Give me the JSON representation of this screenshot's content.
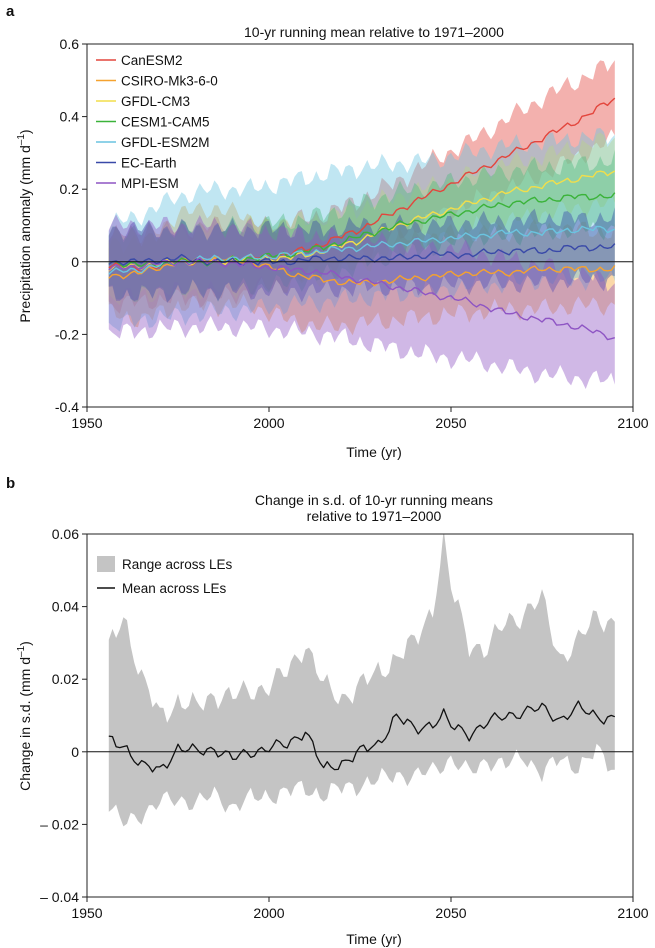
{
  "chart_data": [
    {
      "panel": "a",
      "type": "line",
      "title": "10-yr running mean relative to 1971–2000",
      "xlabel": "Time (yr)",
      "ylabel": "Precipitation anomaly (mm d−1)",
      "ylabel_main": "Precipitation anomaly (mm d",
      "ylabel_sup": "–1",
      "ylabel_close": ")",
      "xlim": [
        1950,
        2100
      ],
      "ylim": [
        -0.4,
        0.6
      ],
      "xticks": [
        1950,
        2000,
        2050,
        2100
      ],
      "xtick_labels": [
        "1950",
        "2000",
        "2050",
        "2100"
      ],
      "yticks": [
        -0.4,
        -0.2,
        0,
        0.2,
        0.4,
        0.6
      ],
      "ytick_labels": [
        "-0.4",
        "-0.2",
        "0",
        "0.2",
        "0.4",
        "0.6"
      ],
      "legend_position": "top-left",
      "zero_line": true,
      "series": [
        {
          "name": "CanESM2",
          "color": "#e3463d",
          "x": [
            1956,
            1965,
            1975,
            1985,
            1995,
            2005,
            2015,
            2025,
            2035,
            2045,
            2055,
            2065,
            2075,
            2085,
            2095
          ],
          "mean": [
            -0.01,
            -0.02,
            0.0,
            0.0,
            0.01,
            0.02,
            0.05,
            0.09,
            0.14,
            0.19,
            0.24,
            0.29,
            0.34,
            0.39,
            0.45
          ],
          "lower": [
            -0.12,
            -0.11,
            -0.1,
            -0.1,
            -0.08,
            -0.06,
            -0.02,
            0.02,
            0.07,
            0.12,
            0.16,
            0.2,
            0.24,
            0.29,
            0.34
          ],
          "upper": [
            0.08,
            0.07,
            0.09,
            0.1,
            0.1,
            0.11,
            0.13,
            0.17,
            0.22,
            0.28,
            0.33,
            0.39,
            0.45,
            0.5,
            0.55
          ]
        },
        {
          "name": "CSIRO-Mk3-6-0",
          "color": "#f5a22f",
          "x": [
            1956,
            1965,
            1975,
            1985,
            1995,
            2005,
            2015,
            2025,
            2035,
            2045,
            2055,
            2065,
            2075,
            2085,
            2095
          ],
          "mean": [
            -0.04,
            -0.03,
            0.0,
            0.01,
            0.0,
            -0.03,
            -0.05,
            -0.06,
            -0.05,
            -0.04,
            -0.03,
            -0.03,
            -0.02,
            -0.02,
            -0.02
          ],
          "lower": [
            -0.14,
            -0.16,
            -0.12,
            -0.12,
            -0.12,
            -0.16,
            -0.18,
            -0.17,
            -0.16,
            -0.15,
            -0.14,
            -0.13,
            -0.13,
            -0.12,
            -0.12
          ],
          "upper": [
            0.05,
            0.06,
            0.13,
            0.15,
            0.12,
            0.08,
            0.05,
            0.05,
            0.06,
            0.07,
            0.08,
            0.08,
            0.09,
            0.09,
            0.08
          ]
        },
        {
          "name": "GFDL-CM3",
          "color": "#f2de4a",
          "x": [
            1956,
            1965,
            1975,
            1985,
            1995,
            2005,
            2015,
            2025,
            2035,
            2045,
            2055,
            2065,
            2075,
            2085,
            2095
          ],
          "mean": [
            -0.02,
            -0.01,
            0.0,
            0.0,
            0.01,
            0.01,
            0.03,
            0.06,
            0.1,
            0.13,
            0.16,
            0.19,
            0.21,
            0.23,
            0.25
          ],
          "lower": [
            -0.1,
            -0.09,
            -0.08,
            -0.08,
            -0.07,
            -0.06,
            -0.04,
            -0.01,
            0.03,
            0.06,
            0.09,
            0.11,
            0.13,
            0.15,
            0.16
          ],
          "upper": [
            0.07,
            0.07,
            0.08,
            0.09,
            0.1,
            0.11,
            0.12,
            0.15,
            0.18,
            0.21,
            0.24,
            0.27,
            0.29,
            0.32,
            0.34
          ]
        },
        {
          "name": "CESM1-CAM5",
          "color": "#3bb33a",
          "x": [
            1956,
            1965,
            1975,
            1985,
            1995,
            2005,
            2015,
            2025,
            2035,
            2045,
            2055,
            2065,
            2075,
            2085,
            2095
          ],
          "mean": [
            0.0,
            -0.01,
            0.0,
            0.0,
            0.01,
            0.02,
            0.04,
            0.07,
            0.1,
            0.12,
            0.14,
            0.16,
            0.17,
            0.18,
            0.18
          ],
          "lower": [
            -0.09,
            -0.09,
            -0.08,
            -0.08,
            -0.07,
            -0.06,
            -0.04,
            -0.01,
            0.02,
            0.04,
            0.06,
            0.07,
            0.08,
            0.09,
            0.09
          ],
          "upper": [
            0.09,
            0.08,
            0.09,
            0.09,
            0.1,
            0.11,
            0.13,
            0.16,
            0.19,
            0.21,
            0.23,
            0.25,
            0.26,
            0.27,
            0.28
          ]
        },
        {
          "name": "GFDL-ESM2M",
          "color": "#6ac4e0",
          "x": [
            1956,
            1965,
            1975,
            1985,
            1995,
            2005,
            2015,
            2025,
            2035,
            2045,
            2055,
            2065,
            2075,
            2085,
            2095
          ],
          "mean": [
            -0.03,
            -0.02,
            0.0,
            0.01,
            0.01,
            0.02,
            0.03,
            0.04,
            0.05,
            0.06,
            0.07,
            0.08,
            0.08,
            0.09,
            0.09
          ],
          "lower": [
            -0.18,
            -0.16,
            -0.15,
            -0.14,
            -0.13,
            -0.12,
            -0.11,
            -0.1,
            -0.09,
            -0.08,
            -0.07,
            -0.06,
            -0.05,
            -0.05,
            -0.05
          ],
          "upper": [
            0.1,
            0.13,
            0.18,
            0.2,
            0.2,
            0.22,
            0.24,
            0.26,
            0.27,
            0.28,
            0.3,
            0.32,
            0.33,
            0.34,
            0.35
          ]
        },
        {
          "name": "EC-Earth",
          "color": "#3949a8",
          "x": [
            1956,
            1965,
            1975,
            1985,
            1995,
            2005,
            2015,
            2025,
            2035,
            2045,
            2055,
            2065,
            2075,
            2085,
            2095
          ],
          "mean": [
            0.0,
            0.0,
            0.01,
            0.0,
            0.0,
            0.0,
            0.01,
            0.01,
            0.01,
            0.02,
            0.02,
            0.03,
            0.03,
            0.04,
            0.04
          ],
          "lower": [
            -0.09,
            -0.09,
            -0.08,
            -0.08,
            -0.08,
            -0.08,
            -0.08,
            -0.07,
            -0.07,
            -0.07,
            -0.06,
            -0.06,
            -0.06,
            -0.05,
            -0.05
          ],
          "upper": [
            0.09,
            0.09,
            0.09,
            0.09,
            0.09,
            0.09,
            0.09,
            0.1,
            0.1,
            0.1,
            0.11,
            0.11,
            0.12,
            0.12,
            0.12
          ]
        },
        {
          "name": "MPI-ESM",
          "color": "#8e55c4",
          "x": [
            1956,
            1965,
            1975,
            1985,
            1995,
            2005,
            2015,
            2025,
            2035,
            2045,
            2055,
            2065,
            2075,
            2085,
            2095
          ],
          "mean": [
            -0.02,
            -0.01,
            0.0,
            0.0,
            -0.01,
            -0.02,
            -0.03,
            -0.05,
            -0.07,
            -0.09,
            -0.11,
            -0.14,
            -0.16,
            -0.18,
            -0.21
          ],
          "lower": [
            -0.2,
            -0.19,
            -0.18,
            -0.18,
            -0.18,
            -0.19,
            -0.2,
            -0.22,
            -0.24,
            -0.26,
            -0.27,
            -0.29,
            -0.31,
            -0.32,
            -0.33
          ],
          "upper": [
            0.1,
            0.1,
            0.1,
            0.1,
            0.09,
            0.08,
            0.07,
            0.06,
            0.05,
            0.04,
            0.03,
            0.01,
            -0.01,
            -0.03,
            -0.06
          ]
        }
      ]
    },
    {
      "panel": "b",
      "type": "area",
      "title_line1": "Change in s.d. of 10-yr running means",
      "title_line2": "relative to 1971–2000",
      "xlabel": "Time (yr)",
      "ylabel_main": "Change in s.d. (mm d",
      "ylabel_sup": "–1",
      "ylabel_close": ")",
      "xlim": [
        1950,
        2100
      ],
      "ylim": [
        -0.04,
        0.06
      ],
      "xticks": [
        1950,
        2000,
        2050,
        2100
      ],
      "xtick_labels": [
        "1950",
        "2000",
        "2050",
        "2100"
      ],
      "yticks": [
        -0.04,
        -0.02,
        0,
        0.02,
        0.04,
        0.06
      ],
      "ytick_labels": [
        "– 0.04",
        "– 0.02",
        "0",
        "0.02",
        "0.04",
        "0.06"
      ],
      "legend_position": "top-left",
      "zero_line": true,
      "series": [
        {
          "name": "Range across LEs",
          "kind": "range",
          "color": "#c4c4c4",
          "x": [
            1956,
            1960,
            1965,
            1970,
            1975,
            1980,
            1985,
            1990,
            1995,
            2000,
            2005,
            2010,
            2015,
            2020,
            2025,
            2030,
            2035,
            2040,
            2045,
            2048,
            2050,
            2055,
            2060,
            2065,
            2070,
            2075,
            2080,
            2085,
            2090,
            2095
          ],
          "lower": [
            -0.015,
            -0.02,
            -0.017,
            -0.014,
            -0.013,
            -0.014,
            -0.012,
            -0.015,
            -0.013,
            -0.012,
            -0.011,
            -0.01,
            -0.012,
            -0.01,
            -0.009,
            -0.008,
            -0.006,
            -0.007,
            -0.005,
            -0.003,
            -0.002,
            -0.006,
            -0.002,
            -0.004,
            -0.001,
            -0.006,
            -0.002,
            -0.004,
            0.0,
            -0.005
          ],
          "upper": [
            0.028,
            0.038,
            0.02,
            0.01,
            0.014,
            0.012,
            0.016,
            0.015,
            0.017,
            0.018,
            0.022,
            0.03,
            0.018,
            0.015,
            0.018,
            0.022,
            0.026,
            0.03,
            0.04,
            0.058,
            0.045,
            0.03,
            0.028,
            0.036,
            0.038,
            0.042,
            0.026,
            0.03,
            0.038,
            0.035
          ]
        },
        {
          "name": "Mean across LEs",
          "kind": "line",
          "color": "#111111",
          "x": [
            1956,
            1960,
            1965,
            1970,
            1975,
            1980,
            1985,
            1990,
            1995,
            2000,
            2005,
            2010,
            2015,
            2020,
            2025,
            2030,
            2035,
            2040,
            2045,
            2048,
            2050,
            2055,
            2060,
            2065,
            2070,
            2075,
            2080,
            2085,
            2090,
            2095
          ],
          "values": [
            0.003,
            0.002,
            -0.004,
            -0.005,
            0.001,
            0.0,
            0.001,
            -0.002,
            0.0,
            0.001,
            0.002,
            0.006,
            -0.005,
            -0.003,
            0.0,
            0.002,
            0.01,
            0.006,
            0.008,
            0.01,
            0.007,
            0.005,
            0.008,
            0.01,
            0.011,
            0.012,
            0.009,
            0.012,
            0.01,
            0.009
          ]
        }
      ]
    }
  ]
}
